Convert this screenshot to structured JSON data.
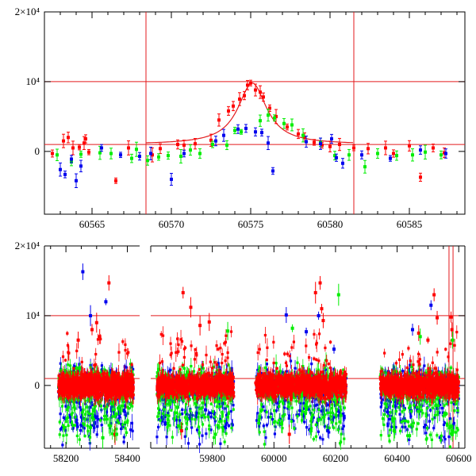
{
  "chart_data": [
    {
      "type": "scatter",
      "panel": "top",
      "xlim": [
        60562,
        60588.5
      ],
      "ylim": [
        -9000,
        20000
      ],
      "xticks": [
        60565,
        60570,
        60575,
        60580,
        60585
      ],
      "yticks": [
        {
          "value": 0,
          "label": "0"
        },
        {
          "value": 10000,
          "label": "10⁴"
        },
        {
          "value": 20000,
          "label": "2×10⁴"
        }
      ],
      "hlines": [
        1000,
        10000
      ],
      "vlines": [
        60568.4,
        60581.5
      ],
      "model": {
        "type": "peak",
        "center": 60575.1,
        "peak": 9800,
        "baseline": 1000,
        "width": 1.1
      },
      "colors": {
        "red": "#ff0000",
        "green": "#00ee00",
        "blue": "#0000ee",
        "line": "#e31a1c"
      },
      "series": [
        {
          "color": "red",
          "points": [
            [
              60562.5,
              -300
            ],
            [
              60563.2,
              1500
            ],
            [
              60563.5,
              2000
            ],
            [
              60563.8,
              500
            ],
            [
              60564.2,
              600
            ],
            [
              60564.5,
              1200
            ],
            [
              60564.6,
              1800
            ],
            [
              60564.8,
              -100
            ],
            [
              60566.5,
              -4200
            ],
            [
              60567.3,
              500
            ],
            [
              60568.8,
              -500
            ],
            [
              60569.3,
              400
            ],
            [
              60570.4,
              1000
            ],
            [
              60570.8,
              900
            ],
            [
              60571.5,
              1100
            ],
            [
              60572.5,
              1600
            ],
            [
              60573.0,
              4500
            ],
            [
              60573.6,
              5800
            ],
            [
              60573.9,
              6500
            ],
            [
              60574.3,
              7500
            ],
            [
              60574.6,
              8000
            ],
            [
              60574.8,
              9500
            ],
            [
              60575.0,
              9800
            ],
            [
              60575.3,
              8800
            ],
            [
              60575.6,
              8500
            ],
            [
              60575.8,
              7800
            ],
            [
              60576.2,
              6200
            ],
            [
              60576.6,
              5000
            ],
            [
              60577.3,
              3500
            ],
            [
              60578.0,
              2500
            ],
            [
              60578.4,
              2000
            ],
            [
              60579.0,
              1300
            ],
            [
              60579.5,
              900
            ],
            [
              60580.0,
              700
            ],
            [
              60580.6,
              1000
            ],
            [
              60581.5,
              500
            ],
            [
              60582.4,
              400
            ],
            [
              60583.5,
              500
            ],
            [
              60584.0,
              -300
            ],
            [
              60585.0,
              800
            ],
            [
              60585.7,
              -3700
            ],
            [
              60586.5,
              500
            ],
            [
              60587.2,
              -200
            ]
          ]
        },
        {
          "color": "green",
          "points": [
            [
              60562.8,
              -500
            ],
            [
              60563.7,
              -1500
            ],
            [
              60564.3,
              -400
            ],
            [
              60565.5,
              -200
            ],
            [
              60566.2,
              -300
            ],
            [
              60567.5,
              -1000
            ],
            [
              60567.8,
              300
            ],
            [
              60568.5,
              -1300
            ],
            [
              60569.2,
              -800
            ],
            [
              60569.8,
              -600
            ],
            [
              60570.6,
              -700
            ],
            [
              60571.2,
              200
            ],
            [
              60571.8,
              -300
            ],
            [
              60572.6,
              1000
            ],
            [
              60573.5,
              900
            ],
            [
              60574.0,
              3000
            ],
            [
              60574.4,
              2800
            ],
            [
              60575.6,
              4400
            ],
            [
              60576.1,
              5200
            ],
            [
              60576.5,
              4800
            ],
            [
              60577.1,
              4000
            ],
            [
              60577.6,
              3800
            ],
            [
              60578.3,
              2300
            ],
            [
              60579.4,
              1300
            ],
            [
              60580.3,
              -600
            ],
            [
              60581.2,
              -500
            ],
            [
              60582.2,
              -2200
            ],
            [
              60583.0,
              -300
            ],
            [
              60584.2,
              -600
            ],
            [
              60585.2,
              -500
            ],
            [
              60586.0,
              -100
            ],
            [
              60587.0,
              -500
            ]
          ]
        },
        {
          "color": "blue",
          "points": [
            [
              60563.0,
              -2600
            ],
            [
              60563.3,
              -3300
            ],
            [
              60563.7,
              -1100
            ],
            [
              60564.0,
              -4200
            ],
            [
              60564.3,
              -2100
            ],
            [
              60565.6,
              500
            ],
            [
              60566.8,
              -500
            ],
            [
              60568.0,
              -700
            ],
            [
              60568.7,
              -300
            ],
            [
              60570.0,
              -4000
            ],
            [
              60570.8,
              -300
            ],
            [
              60572.8,
              1500
            ],
            [
              60573.3,
              2300
            ],
            [
              60574.2,
              3200
            ],
            [
              60574.7,
              3300
            ],
            [
              60575.3,
              2800
            ],
            [
              60575.7,
              2700
            ],
            [
              60576.1,
              1200
            ],
            [
              60576.4,
              -2800
            ],
            [
              60578.5,
              1400
            ],
            [
              60579.4,
              1100
            ],
            [
              60580.1,
              1800
            ],
            [
              60580.4,
              -900
            ],
            [
              60580.8,
              -1700
            ],
            [
              60582.0,
              -500
            ],
            [
              60583.8,
              -1000
            ],
            [
              60585.7,
              200
            ],
            [
              60587.3,
              -300
            ]
          ]
        }
      ]
    },
    {
      "type": "scatter",
      "panel": "bottom",
      "ylim": [
        -9000,
        20000
      ],
      "xticks": [
        58200,
        58400,
        59800,
        60000,
        60200,
        60400,
        60600
      ],
      "yticks": [
        {
          "value": 0,
          "label": "0"
        },
        {
          "value": 10000,
          "label": "10⁴"
        },
        {
          "value": 20000,
          "label": "2×10⁴"
        }
      ],
      "hlines": [
        1000,
        10000
      ],
      "segments": [
        {
          "start": 58130,
          "end": 58440
        },
        {
          "start": 59600,
          "end": 60620
        }
      ],
      "vlines": [
        60568.4,
        60581.5
      ],
      "clusters": [
        {
          "x0": 58175,
          "x1": 58420,
          "spread": 2300,
          "offset": 0
        },
        {
          "x0": 59620,
          "x1": 59870,
          "spread": 2100,
          "offset": 0
        },
        {
          "x0": 59940,
          "x1": 60235,
          "spread": 2300,
          "offset": 0
        },
        {
          "x0": 60345,
          "x1": 60600,
          "spread": 2200,
          "offset": 0
        }
      ],
      "outliers": [
        {
          "color": "blue",
          "points": [
            [
              58255,
              16300
            ],
            [
              58330,
              12000
            ],
            [
              58280,
              10000
            ],
            [
              59778,
              -3500
            ],
            [
              60040,
              10100
            ],
            [
              60105,
              7700
            ],
            [
              60145,
              10000
            ],
            [
              60175,
              -6500
            ],
            [
              60195,
              5200
            ],
            [
              60510,
              11500
            ],
            [
              60450,
              8000
            ]
          ]
        },
        {
          "color": "red",
          "points": [
            [
              58340,
              14700
            ],
            [
              58285,
              8000
            ],
            [
              58300,
              9000
            ],
            [
              58310,
              7000
            ],
            [
              58240,
              6500
            ],
            [
              59705,
              13300
            ],
            [
              59730,
              11200
            ],
            [
              59790,
              9100
            ],
            [
              59760,
              8600
            ],
            [
              60135,
              13300
            ],
            [
              60150,
              14700
            ],
            [
              60155,
              11000
            ],
            [
              60160,
              9300
            ],
            [
              60520,
              13000
            ],
            [
              60530,
              9700
            ],
            [
              60575,
              9800
            ],
            [
              60578,
              8000
            ],
            [
              60470,
              7500
            ],
            [
              60500,
              6500
            ],
            [
              58360,
              -7000
            ],
            [
              59700,
              -6500
            ],
            [
              60050,
              -7000
            ]
          ]
        },
        {
          "color": "green",
          "points": [
            [
              58235,
              2500
            ],
            [
              58320,
              -7500
            ],
            [
              58365,
              -7000
            ],
            [
              58280,
              -6000
            ],
            [
              59715,
              1500
            ],
            [
              59850,
              7800
            ],
            [
              59810,
              -7000
            ],
            [
              59690,
              -5800
            ],
            [
              60060,
              8200
            ],
            [
              60210,
              13000
            ],
            [
              60120,
              -6500
            ],
            [
              60025,
              -5500
            ],
            [
              60475,
              7000
            ],
            [
              60580,
              6500
            ],
            [
              60440,
              -7200
            ],
            [
              60390,
              -6500
            ]
          ]
        }
      ]
    }
  ]
}
